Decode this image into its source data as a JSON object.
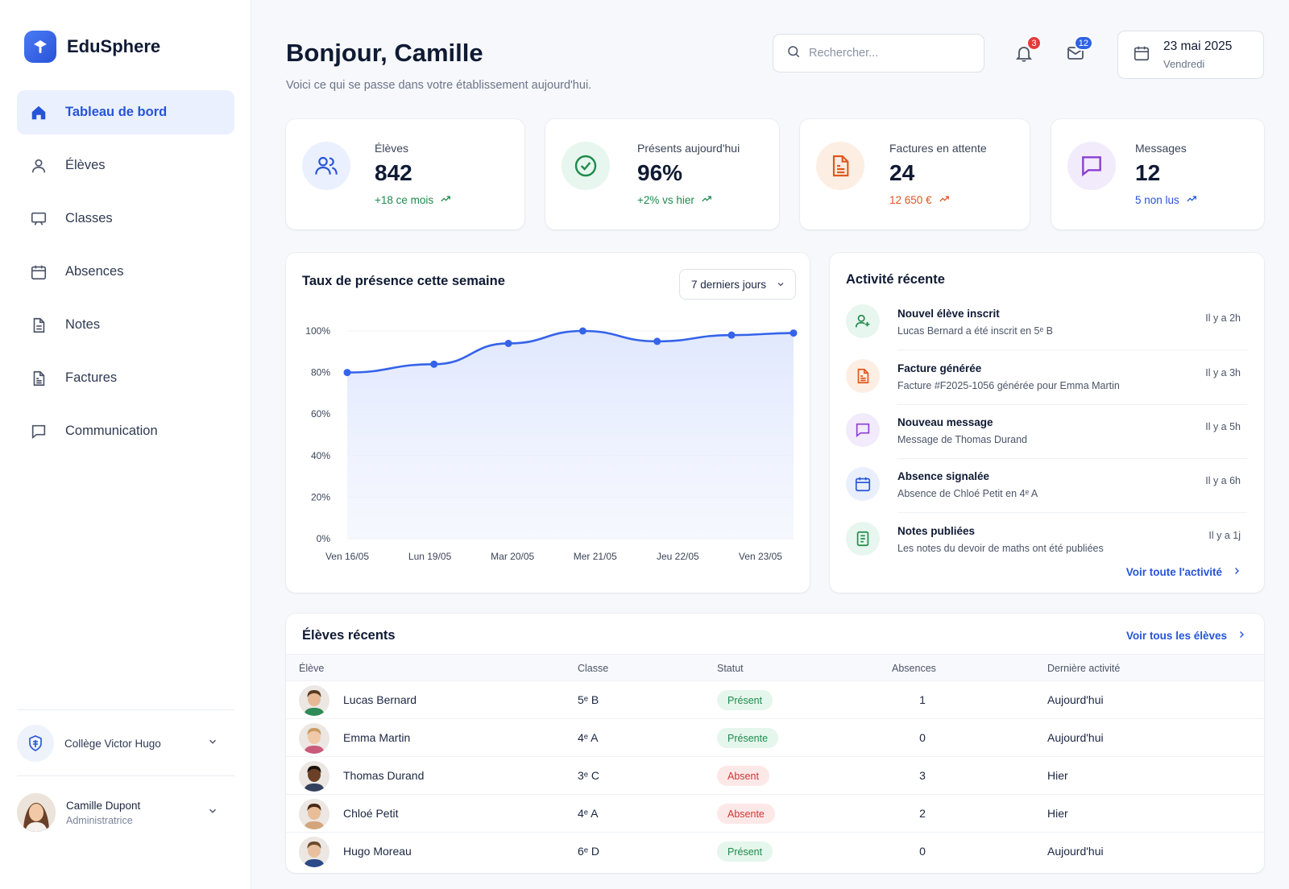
{
  "brand": {
    "name": "EduSphere"
  },
  "sidebar": {
    "items": [
      {
        "label": "Tableau de bord",
        "icon": "home-icon",
        "active": true
      },
      {
        "label": "Élèves",
        "icon": "user-icon"
      },
      {
        "label": "Classes",
        "icon": "chalkboard-icon"
      },
      {
        "label": "Absences",
        "icon": "calendar-icon"
      },
      {
        "label": "Notes",
        "icon": "document-icon"
      },
      {
        "label": "Factures",
        "icon": "invoice-icon"
      },
      {
        "label": "Communication",
        "icon": "chat-icon"
      }
    ],
    "school": "Collège Victor Hugo",
    "user": {
      "name": "Camille Dupont",
      "role": "Administratrice"
    }
  },
  "header": {
    "greeting": "Bonjour, Camille",
    "subtitle": "Voici ce qui se passe dans votre établissement aujourd'hui.",
    "search_placeholder": "Rechercher...",
    "notifications_count": "3",
    "messages_count": "12",
    "date": "23 mai 2025",
    "weekday": "Vendredi"
  },
  "stats": [
    {
      "label": "Élèves",
      "value": "842",
      "delta": "+18 ce mois",
      "color": "#1f8a4c",
      "icon": "users-icon"
    },
    {
      "label": "Présents aujourd'hui",
      "value": "96%",
      "delta": "+2% vs hier",
      "color": "#1f8a4c",
      "icon": "check-circle-icon"
    },
    {
      "label": "Factures en attente",
      "value": "24",
      "delta": "12 650 €",
      "color": "#e0571f",
      "icon": "invoice-icon"
    },
    {
      "label": "Messages",
      "value": "12",
      "delta": "5 non lus",
      "color": "#2654d8",
      "icon": "message-icon"
    }
  ],
  "attendance": {
    "title": "Taux de présence cette semaine",
    "range_label": "7 derniers jours"
  },
  "chart_data": {
    "type": "area",
    "title": "Taux de présence cette semaine",
    "y_ticks": [
      "100%",
      "80%",
      "60%",
      "40%",
      "20%",
      "0%"
    ],
    "ylim": [
      0,
      100
    ],
    "x_labels": [
      "Ven 16/05",
      "Lun 19/05",
      "Mar 20/05",
      "Mer 21/05",
      "Jeu 22/05",
      "Ven 23/05"
    ],
    "points": [
      {
        "x": 0.0,
        "y": 80
      },
      {
        "x": 1.05,
        "y": 84
      },
      {
        "x": 1.95,
        "y": 94
      },
      {
        "x": 2.85,
        "y": 100
      },
      {
        "x": 3.75,
        "y": 95
      },
      {
        "x": 4.65,
        "y": 98
      },
      {
        "x": 5.4,
        "y": 99
      }
    ],
    "color": "#3563e9",
    "grid": true
  },
  "activity": {
    "title": "Activité récente",
    "items": [
      {
        "title": "Nouvel élève inscrit",
        "desc": "Lucas Bernard a été inscrit en 5ᵉ B",
        "time": "Il y a 2h",
        "icon": "user-plus-icon",
        "bg": "#e7f6ee",
        "fg": "#1f8a4c"
      },
      {
        "title": "Facture générée",
        "desc": "Facture #F2025-1056 générée pour Emma Martin",
        "time": "Il y a 3h",
        "icon": "invoice-icon",
        "bg": "#fdeee3",
        "fg": "#e0571f"
      },
      {
        "title": "Nouveau message",
        "desc": "Message de Thomas Durand",
        "time": "Il y a 5h",
        "icon": "message-icon",
        "bg": "#f2ebfb",
        "fg": "#8a3fd1"
      },
      {
        "title": "Absence signalée",
        "desc": "Absence de Chloé Petit en 4ᵉ A",
        "time": "Il y a 6h",
        "icon": "calendar-icon",
        "bg": "#e9effd",
        "fg": "#2654d8"
      },
      {
        "title": "Notes publiées",
        "desc": "Les notes du devoir de maths ont été publiées",
        "time": "Il y a 1j",
        "icon": "grades-icon",
        "bg": "#e7f6ee",
        "fg": "#1f8a4c"
      }
    ],
    "link": "Voir toute l'activité"
  },
  "students": {
    "title": "Élèves récents",
    "link": "Voir tous les élèves",
    "columns": [
      "Élève",
      "Classe",
      "Statut",
      "Absences",
      "Dernière activité"
    ],
    "rows": [
      {
        "name": "Lucas Bernard",
        "class": "5ᵉ B",
        "status": "Présent",
        "ok": true,
        "absences": "1",
        "last": "Aujourd'hui",
        "skin": "#e6b896",
        "hair": "#5a3a22",
        "shirt": "#2e8b57"
      },
      {
        "name": "Emma Martin",
        "class": "4ᵉ A",
        "status": "Présente",
        "ok": true,
        "absences": "0",
        "last": "Aujourd'hui",
        "skin": "#f0c9a8",
        "hair": "#c89b63",
        "shirt": "#c95a7a"
      },
      {
        "name": "Thomas Durand",
        "class": "3ᵉ C",
        "status": "Absent",
        "ok": false,
        "absences": "3",
        "last": "Hier",
        "skin": "#6b4026",
        "hair": "#1c120c",
        "shirt": "#33415c"
      },
      {
        "name": "Chloé Petit",
        "class": "4ᵉ A",
        "status": "Absente",
        "ok": false,
        "absences": "2",
        "last": "Hier",
        "skin": "#e8bd98",
        "hair": "#4a2a17",
        "shirt": "#d3a57c"
      },
      {
        "name": "Hugo Moreau",
        "class": "6ᵉ D",
        "status": "Présent",
        "ok": true,
        "absences": "0",
        "last": "Aujourd'hui",
        "skin": "#e9c09e",
        "hair": "#6b4a2c",
        "shirt": "#2c4a88"
      }
    ]
  }
}
